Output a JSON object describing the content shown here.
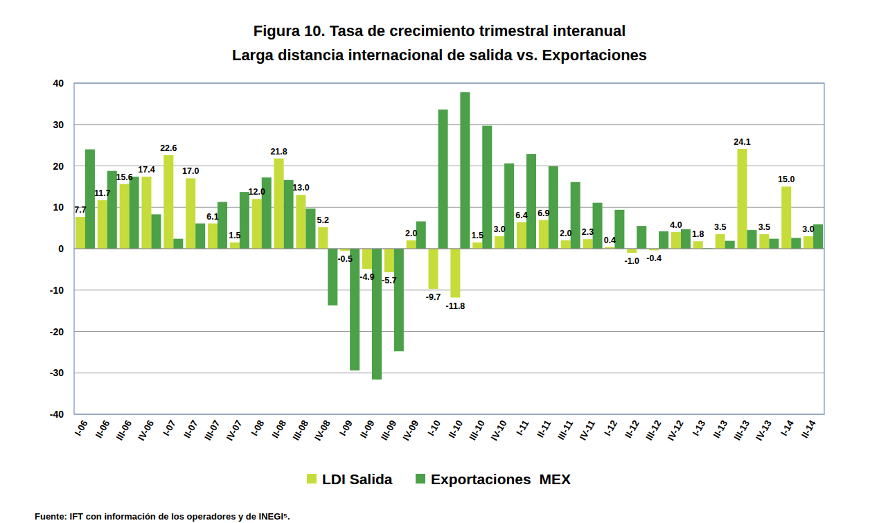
{
  "chart_data": {
    "type": "bar",
    "title": "Figura 10. Tasa de crecimiento trimestral interanual",
    "subtitle": "Larga distancia internacional de salida vs. Exportaciones",
    "annotations": [
      "Fuente: IFT con información de los operadores y de INEGI⁵."
    ],
    "categories": [
      "I-06",
      "II-06",
      "III-06",
      "IV-06",
      "I-07",
      "II-07",
      "III-07",
      "IV-07",
      "I-08",
      "II-08",
      "III-08",
      "IV-08",
      "I-09",
      "II-09",
      "III-09",
      "IV-09",
      "I-10",
      "II-10",
      "III-10",
      "IV-10",
      "I-11",
      "II-11",
      "III-11",
      "IV-11",
      "I-12",
      "II-12",
      "III-12",
      "IV-12",
      "I-13",
      "II-13",
      "III-13",
      "IV-13",
      "I-14",
      "II-14"
    ],
    "series": [
      {
        "name": "LDI Salida",
        "color": "#c6dc3a",
        "data_labels": true,
        "values": [
          7.7,
          11.7,
          15.6,
          17.4,
          22.6,
          17.0,
          6.1,
          1.5,
          12.0,
          21.8,
          13.0,
          5.2,
          -0.5,
          -4.9,
          -5.7,
          2.0,
          -9.7,
          -11.8,
          1.5,
          3.0,
          6.4,
          6.9,
          2.0,
          2.3,
          0.4,
          -1.0,
          -0.4,
          4.0,
          1.8,
          3.5,
          24.1,
          3.5,
          15.0,
          3.0
        ],
        "value_labels": [
          "7.7",
          "11.7",
          "15.6",
          "17.4",
          "22.6",
          "17.0",
          "6.1",
          "1.5",
          "12.0",
          "21.8",
          "13.0",
          "5.2",
          "-0.5",
          "-4.9",
          "-5.7",
          "2.0",
          "-9.7",
          "-11.8",
          "1.5",
          "3.0",
          "6.4",
          "6.9",
          "2.0",
          "2.3",
          "0.4",
          "-1.0",
          "-0.4",
          "4.0",
          "1.8",
          "3.5",
          "24.1",
          "3.5",
          "15.0",
          "3.0"
        ]
      },
      {
        "name": "Exportaciones  MEX",
        "color": "#4ba048",
        "values": [
          24.0,
          18.8,
          17.4,
          8.3,
          2.4,
          6.1,
          11.3,
          13.7,
          17.2,
          16.6,
          9.7,
          -13.7,
          -29.4,
          -31.6,
          -24.8,
          6.6,
          33.6,
          37.8,
          29.7,
          20.6,
          22.9,
          19.9,
          16.1,
          11.1,
          9.4,
          5.5,
          4.2,
          4.7,
          0.1,
          1.9,
          4.5,
          2.4,
          2.6,
          5.9
        ]
      }
    ],
    "ylim": [
      -40,
      40
    ],
    "yticks": [
      -40,
      -30,
      -20,
      -10,
      0,
      10,
      20,
      30,
      40
    ],
    "grid": true,
    "legend": "bottom"
  }
}
